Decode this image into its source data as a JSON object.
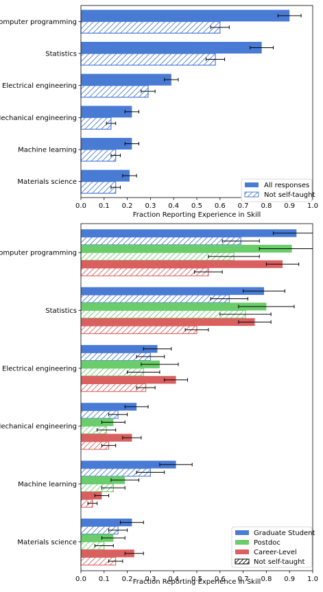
{
  "chart_data": [
    {
      "type": "bar",
      "orientation": "horizontal",
      "categories": [
        "Computer programming",
        "Statistics",
        "Electrical engineering",
        "Mechanical engineering",
        "Machine learning",
        "Materials science"
      ],
      "series": [
        {
          "name": "All responses",
          "style": "solid",
          "color": "#4a7bd4",
          "values": [
            0.9,
            0.78,
            0.39,
            0.22,
            0.22,
            0.21
          ],
          "err": [
            0.05,
            0.05,
            0.03,
            0.03,
            0.03,
            0.03
          ]
        },
        {
          "name": "Not self-taught",
          "style": "hatched",
          "color": "#4a7bd4",
          "values": [
            0.6,
            0.58,
            0.29,
            0.13,
            0.15,
            0.15
          ],
          "err": [
            0.04,
            0.04,
            0.03,
            0.02,
            0.02,
            0.02
          ]
        }
      ],
      "xlabel": "Fraction Reporting Experience in Skill",
      "ylabel": "",
      "xlim": [
        0.0,
        1.0
      ],
      "xticks": [
        "0.0",
        "0.1",
        "0.2",
        "0.3",
        "0.4",
        "0.5",
        "0.6",
        "0.7",
        "0.8",
        "0.9",
        "1.0"
      ],
      "legend": {
        "position": "bottom-right",
        "entries": [
          "All responses",
          "Not self-taught"
        ]
      },
      "grid": false
    },
    {
      "type": "bar",
      "orientation": "horizontal",
      "categories": [
        "Computer programming",
        "Statistics",
        "Electrical engineering",
        "Mechanical engineering",
        "Machine learning",
        "Materials science"
      ],
      "series": [
        {
          "name": "Graduate Student",
          "color": "#4a7bd4",
          "values": [
            0.93,
            0.79,
            0.33,
            0.24,
            0.41,
            0.22
          ],
          "err": [
            0.1,
            0.09,
            0.06,
            0.05,
            0.07,
            0.05
          ],
          "hatched_values": [
            0.69,
            0.64,
            0.3,
            0.16,
            0.3,
            0.16
          ],
          "hatched_err": [
            0.08,
            0.08,
            0.06,
            0.04,
            0.06,
            0.04
          ]
        },
        {
          "name": "Postdoc",
          "color": "#6acc6a",
          "values": [
            0.91,
            0.8,
            0.34,
            0.14,
            0.19,
            0.14
          ],
          "err": [
            0.14,
            0.12,
            0.08,
            0.05,
            0.06,
            0.05
          ],
          "hatched_values": [
            0.66,
            0.71,
            0.27,
            0.11,
            0.14,
            0.1
          ],
          "hatched_err": [
            0.11,
            0.11,
            0.07,
            0.04,
            0.05,
            0.04
          ]
        },
        {
          "name": "Career-Level",
          "color": "#d9605f",
          "values": [
            0.87,
            0.75,
            0.41,
            0.22,
            0.09,
            0.23
          ],
          "err": [
            0.07,
            0.07,
            0.05,
            0.04,
            0.03,
            0.04
          ],
          "hatched_values": [
            0.55,
            0.5,
            0.28,
            0.12,
            0.05,
            0.15
          ],
          "hatched_err": [
            0.06,
            0.05,
            0.04,
            0.03,
            0.02,
            0.03
          ]
        }
      ],
      "xlabel": "Fraction Reporting Experience in Skill",
      "ylabel": "",
      "xlim": [
        0.0,
        1.0
      ],
      "xticks": [
        "0.0",
        "0.1",
        "0.2",
        "0.3",
        "0.4",
        "0.5",
        "0.6",
        "0.7",
        "0.8",
        "0.9",
        "1.0"
      ],
      "legend": {
        "position": "bottom-right",
        "entries": [
          "Graduate Student",
          "Postdoc",
          "Career-Level",
          "Not self-taught"
        ]
      },
      "grid": false
    }
  ]
}
